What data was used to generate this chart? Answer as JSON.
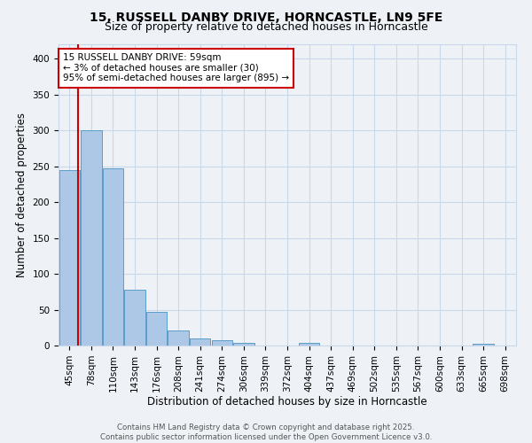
{
  "title1": "15, RUSSELL DANBY DRIVE, HORNCASTLE, LN9 5FE",
  "title2": "Size of property relative to detached houses in Horncastle",
  "xlabel": "Distribution of detached houses by size in Horncastle",
  "ylabel": "Number of detached properties",
  "categories": [
    "45sqm",
    "78sqm",
    "110sqm",
    "143sqm",
    "176sqm",
    "208sqm",
    "241sqm",
    "274sqm",
    "306sqm",
    "339sqm",
    "372sqm",
    "404sqm",
    "437sqm",
    "469sqm",
    "502sqm",
    "535sqm",
    "567sqm",
    "600sqm",
    "633sqm",
    "665sqm",
    "698sqm"
  ],
  "values": [
    245,
    300,
    247,
    78,
    47,
    21,
    10,
    7,
    4,
    0,
    0,
    4,
    0,
    0,
    0,
    0,
    0,
    0,
    0,
    3,
    0
  ],
  "bar_color": "#adc8e6",
  "bar_edge_color": "#5a9ec9",
  "grid_color": "#c8d8e8",
  "background_color": "#eef2f7",
  "vline_x": 0.38,
  "vline_color": "#cc0000",
  "annotation_text": "15 RUSSELL DANBY DRIVE: 59sqm\n← 3% of detached houses are smaller (30)\n95% of semi-detached houses are larger (895) →",
  "annotation_box_color": "#cc0000",
  "ylim": [
    0,
    420
  ],
  "yticks": [
    0,
    50,
    100,
    150,
    200,
    250,
    300,
    350,
    400
  ],
  "footnote1": "Contains HM Land Registry data © Crown copyright and database right 2025.",
  "footnote2": "Contains public sector information licensed under the Open Government Licence v3.0.",
  "title1_fontsize": 10,
  "title2_fontsize": 9,
  "tick_fontsize": 7.5,
  "label_fontsize": 8.5,
  "annotation_fontsize": 7.5
}
